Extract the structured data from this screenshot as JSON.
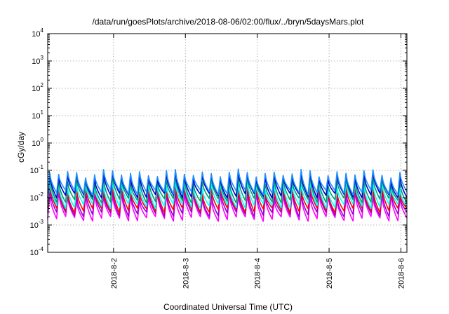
{
  "chart_data": {
    "type": "line",
    "title": "/data/run/goesPlots/archive/2018-08-06/02:00/flux/../bryn/5daysMars.plot",
    "xlabel": "Coordinated Universal Time (UTC)",
    "ylabel": "cGy/day",
    "y_scale": "log",
    "ylim": [
      0.0001,
      10000
    ],
    "y_ticks": [
      {
        "base": "10",
        "exp": "-4"
      },
      {
        "base": "10",
        "exp": "-3"
      },
      {
        "base": "10",
        "exp": "-2"
      },
      {
        "base": "10",
        "exp": "-1"
      },
      {
        "base": "10",
        "exp": "0"
      },
      {
        "base": "10",
        "exp": "1"
      },
      {
        "base": "10",
        "exp": "2"
      },
      {
        "base": "10",
        "exp": "3"
      },
      {
        "base": "10",
        "exp": "4"
      }
    ],
    "xlim": [
      "2018-08-01T02:00",
      "2018-08-06T02:00"
    ],
    "x_ticks": [
      {
        "label": "2018-8-2",
        "date": "2018-08-02T00:00"
      },
      {
        "label": "2018-8-3",
        "date": "2018-08-03T00:00"
      },
      {
        "label": "2018-8-4",
        "date": "2018-08-04T00:00"
      },
      {
        "label": "2018-8-5",
        "date": "2018-08-05T00:00"
      },
      {
        "label": "2018-8-6",
        "date": "2018-08-06T00:00"
      }
    ],
    "grid": true,
    "legend": "none",
    "pattern": {
      "cycles_per_day": 8,
      "description": "periodic sawtooth: sharp rise followed by decay within each cycle"
    },
    "series": [
      {
        "color": "#ff00ff",
        "peak": 0.012,
        "trough": 0.0017
      },
      {
        "color": "#9400d3",
        "peak": 0.016,
        "trough": 0.0025
      },
      {
        "color": "#ff0000",
        "peak": 0.022,
        "trough": 0.0035
      },
      {
        "color": "#00ffff",
        "peak": 0.03,
        "trough": 0.005
      },
      {
        "color": "#009e73",
        "peak": 0.045,
        "trough": 0.008
      },
      {
        "color": "#0000cd",
        "peak": 0.065,
        "trough": 0.012
      },
      {
        "color": "#1e90ff",
        "peak": 0.08,
        "trough": 0.016
      }
    ]
  }
}
